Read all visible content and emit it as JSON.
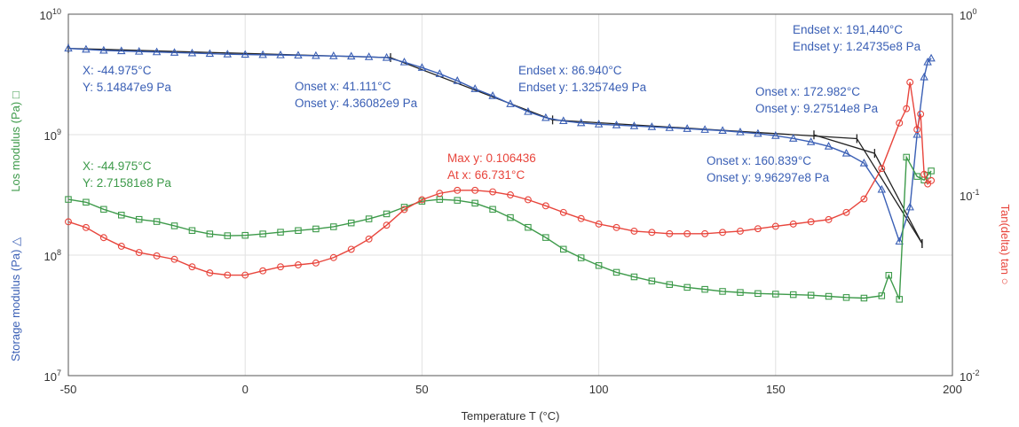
{
  "chart_data": {
    "type": "line",
    "xlabel": "Temperature T (°C)",
    "ylabel_left_storage": "Storage modulus (Pa) △",
    "ylabel_left_loss": "Los modulus (Pa) □",
    "ylabel_right": "Tan(delta) tan ○",
    "xlim": [
      -50,
      200
    ],
    "ylim_left": [
      10000000,
      10000000000
    ],
    "ylim_right": [
      0.01,
      1
    ],
    "y_scale": "log",
    "grid": true,
    "x_ticks": [
      "-50",
      "0",
      "50",
      "100",
      "150",
      "200"
    ],
    "y_left_ticks": [
      {
        "base": "10",
        "exp": "7",
        "value": 10000000
      },
      {
        "base": "10",
        "exp": "8",
        "value": 100000000
      },
      {
        "base": "10",
        "exp": "9",
        "value": 1000000000
      },
      {
        "base": "10",
        "exp": "10",
        "value": 10000000000
      }
    ],
    "y_right_ticks": [
      {
        "base": "10",
        "exp": "-2",
        "value": 0.01
      },
      {
        "base": "10",
        "exp": "-1",
        "value": 0.1
      },
      {
        "base": "10",
        "exp": "0",
        "value": 1
      }
    ],
    "series": [
      {
        "key": "storage",
        "color": "#3a5fb5",
        "marker": "triangle",
        "axis": "left",
        "x": [
          -50,
          -45,
          -40,
          -35,
          -30,
          -25,
          -20,
          -15,
          -10,
          -5,
          0,
          5,
          10,
          15,
          20,
          25,
          30,
          35,
          40,
          45,
          50,
          55,
          60,
          65,
          70,
          75,
          80,
          85,
          90,
          95,
          100,
          105,
          110,
          115,
          120,
          125,
          130,
          135,
          140,
          145,
          150,
          155,
          160,
          165,
          170,
          175,
          180,
          185,
          188,
          190,
          192,
          193,
          194
        ],
        "y": [
          5200000000.0,
          5100000000.0,
          5000000000.0,
          4950000000.0,
          4900000000.0,
          4850000000.0,
          4800000000.0,
          4750000000.0,
          4700000000.0,
          4650000000.0,
          4620000000.0,
          4600000000.0,
          4580000000.0,
          4550000000.0,
          4520000000.0,
          4500000000.0,
          4470000000.0,
          4420000000.0,
          4360000000.0,
          4000000000.0,
          3600000000.0,
          3200000000.0,
          2800000000.0,
          2400000000.0,
          2100000000.0,
          1800000000.0,
          1550000000.0,
          1380000000.0,
          1300000000.0,
          1250000000.0,
          1220000000.0,
          1200000000.0,
          1180000000.0,
          1160000000.0,
          1140000000.0,
          1120000000.0,
          1100000000.0,
          1080000000.0,
          1050000000.0,
          1020000000.0,
          980000000.0,
          930000000.0,
          870000000.0,
          800000000.0,
          700000000.0,
          580000000.0,
          350000000.0,
          130000000.0,
          250000000.0,
          1000000000.0,
          3000000000.0,
          4000000000.0,
          4300000000.0
        ]
      },
      {
        "key": "loss",
        "color": "#3d9a4a",
        "marker": "square",
        "axis": "left",
        "x": [
          -50,
          -45,
          -40,
          -35,
          -30,
          -25,
          -20,
          -15,
          -10,
          -5,
          0,
          5,
          10,
          15,
          20,
          25,
          30,
          35,
          40,
          45,
          50,
          55,
          60,
          65,
          70,
          75,
          80,
          85,
          90,
          95,
          100,
          105,
          110,
          115,
          120,
          125,
          130,
          135,
          140,
          145,
          150,
          155,
          160,
          165,
          170,
          175,
          180,
          182,
          185,
          187,
          190,
          192,
          193,
          194
        ],
        "y": [
          290000000.0,
          275000000.0,
          240000000.0,
          215000000.0,
          198000000.0,
          190000000.0,
          175000000.0,
          160000000.0,
          150000000.0,
          145000000.0,
          146000000.0,
          150000000.0,
          155000000.0,
          160000000.0,
          165000000.0,
          172000000.0,
          185000000.0,
          200000000.0,
          220000000.0,
          250000000.0,
          280000000.0,
          290000000.0,
          285000000.0,
          270000000.0,
          240000000.0,
          205000000.0,
          170000000.0,
          140000000.0,
          112000000.0,
          95000000.0,
          82000000.0,
          72000000.0,
          66000000.0,
          61000000.0,
          57000000.0,
          54000000.0,
          52000000.0,
          50000000.0,
          49000000.0,
          48000000.0,
          47500000.0,
          47000000.0,
          46500000.0,
          45500000.0,
          44500000.0,
          44000000.0,
          46000000.0,
          68000000.0,
          43000000.0,
          650000000.0,
          450000000.0,
          420000000.0,
          460000000.0,
          500000000.0
        ]
      },
      {
        "key": "tand",
        "color": "#e8453c",
        "marker": "circle",
        "axis": "right",
        "x": [
          -50,
          -45,
          -40,
          -35,
          -30,
          -25,
          -20,
          -15,
          -10,
          -5,
          0,
          5,
          10,
          15,
          20,
          25,
          30,
          35,
          40,
          45,
          50,
          55,
          60,
          65,
          70,
          75,
          80,
          85,
          90,
          95,
          100,
          105,
          110,
          115,
          120,
          125,
          130,
          135,
          140,
          145,
          150,
          155,
          160,
          165,
          170,
          175,
          180,
          185,
          187,
          188,
          190,
          191,
          192,
          193,
          194
        ],
        "y": [
          0.071,
          0.066,
          0.058,
          0.052,
          0.048,
          0.046,
          0.044,
          0.04,
          0.037,
          0.036,
          0.036,
          0.038,
          0.04,
          0.041,
          0.042,
          0.045,
          0.05,
          0.057,
          0.068,
          0.083,
          0.094,
          0.102,
          0.106,
          0.106,
          0.104,
          0.1,
          0.094,
          0.087,
          0.08,
          0.074,
          0.069,
          0.066,
          0.063,
          0.062,
          0.061,
          0.061,
          0.061,
          0.062,
          0.063,
          0.065,
          0.067,
          0.069,
          0.071,
          0.073,
          0.08,
          0.095,
          0.14,
          0.25,
          0.3,
          0.42,
          0.23,
          0.28,
          0.13,
          0.115,
          0.12
        ]
      }
    ],
    "tangent_lines": [
      {
        "axis": "left",
        "points": [
          [
            -50,
            5200000000.0
          ],
          [
            41.111,
            4360000000.0
          ],
          [
            86.94,
            1325740000.0
          ],
          [
            172.982,
            927514000.0
          ],
          [
            191.44,
            124735000.0
          ]
        ]
      },
      {
        "axis": "left",
        "points": [
          [
            160.839,
            996297000.0
          ],
          [
            178,
            700000000.0
          ],
          [
            191.44,
            124735000.0
          ]
        ]
      }
    ],
    "annotations": [
      {
        "key": "storage_start",
        "color": "#3a5fb5",
        "lines": [
          "X: -44.975°C",
          "Y: 5.14847e9 Pa"
        ]
      },
      {
        "key": "onset1",
        "color": "#3a5fb5",
        "lines": [
          "Onset x: 41.111°C",
          "Onset y: 4.36082e9 Pa"
        ]
      },
      {
        "key": "endset1",
        "color": "#3a5fb5",
        "lines": [
          "Endset x: 86.940°C",
          "Endset y: 1.32574e9 Pa"
        ]
      },
      {
        "key": "endset2",
        "color": "#3a5fb5",
        "lines": [
          "Endset x: 191,440°C",
          "Endset y: 1.24735e8 Pa"
        ]
      },
      {
        "key": "onset2",
        "color": "#3a5fb5",
        "lines": [
          "Onset x: 172.982°C",
          "Onset y: 9.27514e8 Pa"
        ]
      },
      {
        "key": "onset3",
        "color": "#3a5fb5",
        "lines": [
          "Onset x: 160.839°C",
          "Onset y: 9.96297e8 Pa"
        ]
      },
      {
        "key": "loss_start",
        "color": "#3d9a4a",
        "lines": [
          "X: -44.975°C",
          "Y: 2.71581e8 Pa"
        ]
      },
      {
        "key": "tand_max",
        "color": "#e8453c",
        "lines": [
          "Max y: 0.106436",
          "At x: 66.731°C"
        ]
      }
    ]
  }
}
